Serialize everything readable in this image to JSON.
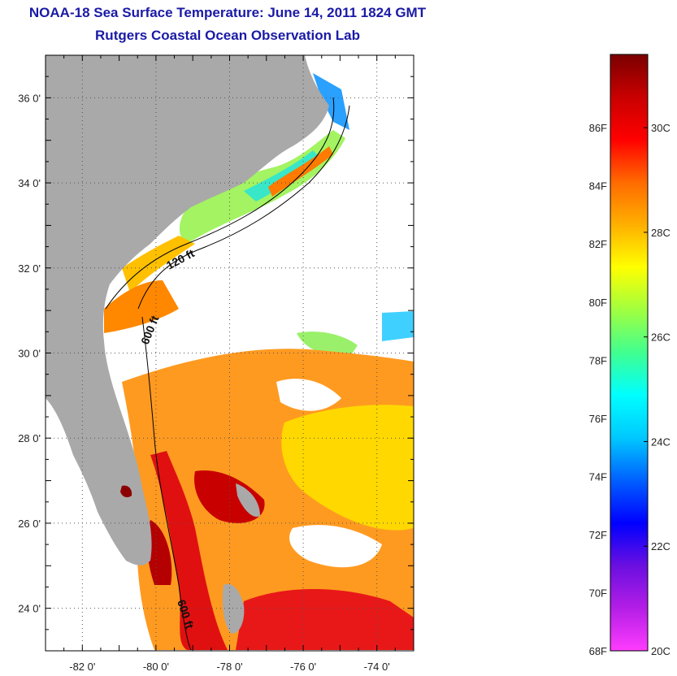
{
  "title": "NOAA-18 Sea Surface Temperature:  June 14, 2011 1824 GMT",
  "subtitle": "Rutgers Coastal Ocean Observation Lab",
  "map": {
    "lat_labels": [
      {
        "lat": 36,
        "text": "36 0'"
      },
      {
        "lat": 34,
        "text": "34 0'"
      },
      {
        "lat": 32,
        "text": "32 0'"
      },
      {
        "lat": 30,
        "text": "30 0'"
      },
      {
        "lat": 28,
        "text": "28 0'"
      },
      {
        "lat": 26,
        "text": "26 0'"
      },
      {
        "lat": 24,
        "text": "24 0'"
      }
    ],
    "lon_labels": [
      {
        "lon": -82,
        "text": "-82 0'"
      },
      {
        "lon": -80,
        "text": "-80 0'"
      },
      {
        "lon": -78,
        "text": "-78 0'"
      },
      {
        "lon": -76,
        "text": "-76 0'"
      },
      {
        "lon": -74,
        "text": "-74 0'"
      }
    ],
    "lat_range": [
      23.0,
      37.0
    ],
    "lon_range": [
      -83.0,
      -73.0
    ],
    "contour_labels": {
      "c120": "120 ft",
      "c600a": "600 ft",
      "c600b": "600 ft"
    },
    "land_color": "#a9a9a9"
  },
  "colorbar": {
    "fahrenheit_labels": [
      "86F",
      "84F",
      "82F",
      "80F",
      "78F",
      "76F",
      "74F",
      "72F",
      "70F",
      "68F"
    ],
    "celsius_labels": [
      "30C",
      "28C",
      "26C",
      "24C",
      "22C",
      "20C"
    ],
    "range_c": [
      20,
      31.4
    ],
    "colors": [
      "#ff3cff",
      "#b41ee6",
      "#6a0fe0",
      "#0000ff",
      "#0060ff",
      "#00c8ff",
      "#00ffff",
      "#40ff90",
      "#a0ff40",
      "#ffff00",
      "#ffb000",
      "#ff6a00",
      "#ff0000",
      "#c80000",
      "#7a0000"
    ]
  }
}
